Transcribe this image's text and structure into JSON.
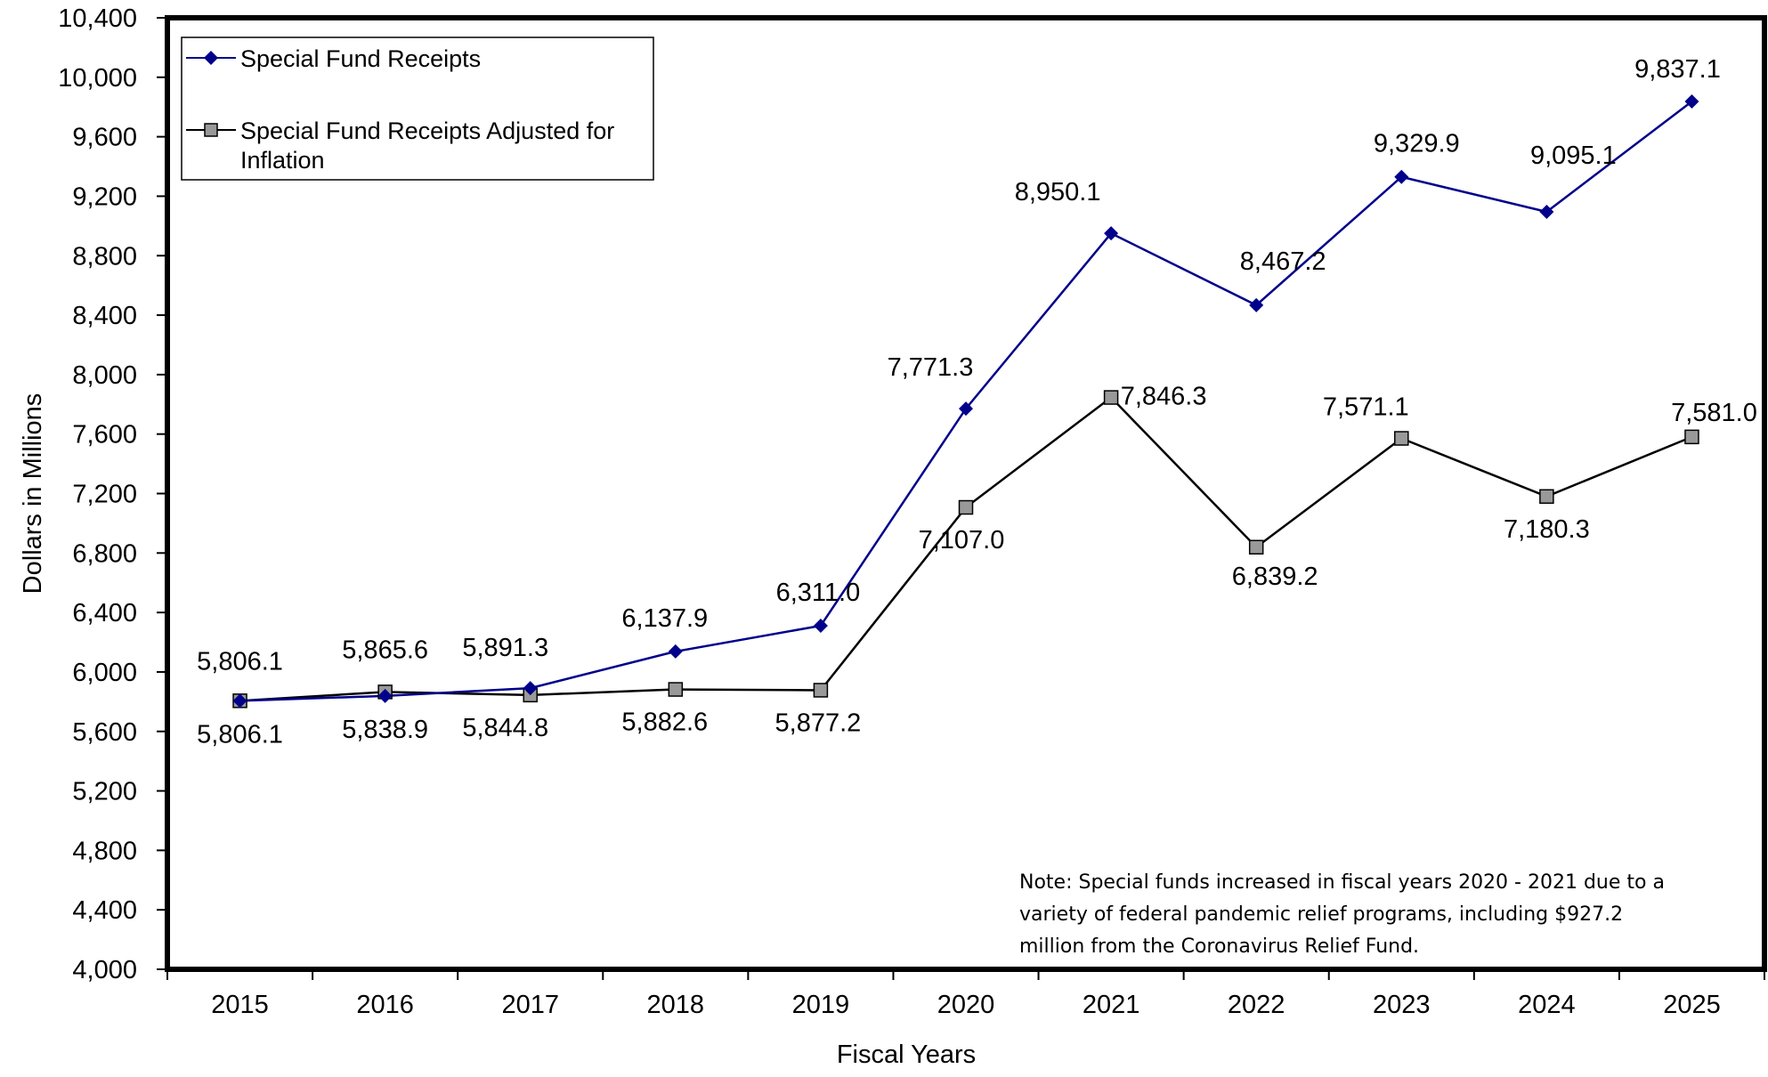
{
  "chart_data": {
    "type": "line",
    "xlabel": "Fiscal Years",
    "ylabel": "Dollars in Millions",
    "ylim": [
      4000,
      10400
    ],
    "yticks": [
      4000,
      4400,
      4800,
      5200,
      5600,
      6000,
      6400,
      6800,
      7200,
      7600,
      8000,
      8400,
      8800,
      9200,
      9600,
      10000,
      10400
    ],
    "ytick_labels": [
      "4,000",
      "4,400",
      "4,800",
      "5,200",
      "5,600",
      "6,000",
      "6,400",
      "6,800",
      "7,200",
      "7,600",
      "8,000",
      "8,400",
      "8,800",
      "9,200",
      "9,600",
      "10,000",
      "10,400"
    ],
    "categories": [
      "2015",
      "2016",
      "2017",
      "2018",
      "2019",
      "2020",
      "2021",
      "2022",
      "2023",
      "2024",
      "2025"
    ],
    "series": [
      {
        "name": "Special Fund Receipts",
        "color": "#00008B",
        "marker": "diamond",
        "values": [
          5806.1,
          5838.9,
          5891.3,
          6137.9,
          6311.0,
          7771.3,
          8950.1,
          8467.2,
          9329.9,
          9095.1,
          9837.1
        ],
        "labels": [
          "5,806.1",
          "5,838.9",
          "5,891.3",
          "6,137.9",
          "6,311.0",
          "7,771.3",
          "8,950.1",
          "8,467.2",
          "9,329.9",
          "9,095.1",
          "9,837.1"
        ]
      },
      {
        "name": "Special Fund Receipts Adjusted for Inflation",
        "color": "#000000",
        "marker": "square",
        "marker_fill": "#999999",
        "values": [
          5806.1,
          5865.6,
          5844.8,
          5882.6,
          5877.2,
          7107.0,
          7846.3,
          6839.2,
          7571.1,
          7180.3,
          7581.0
        ],
        "labels": [
          "5,806.1",
          "5,865.6",
          "5,844.8",
          "5,882.6",
          "5,877.2",
          "7,107.0",
          "7,846.3",
          "6,839.2",
          "7,571.1",
          "7,180.3",
          "7,581.0"
        ]
      }
    ],
    "legend": {
      "placement": "top-left",
      "entries": [
        "Special Fund Receipts",
        "Special Fund Receipts Adjusted for Inflation"
      ]
    },
    "annotation": {
      "lines": [
        "Note:  Special funds increased in fiscal years 2020 - 2021 due to a",
        "variety of federal pandemic relief programs, including $927.2",
        "million from the Coronavirus Relief Fund."
      ]
    },
    "grid": false
  }
}
